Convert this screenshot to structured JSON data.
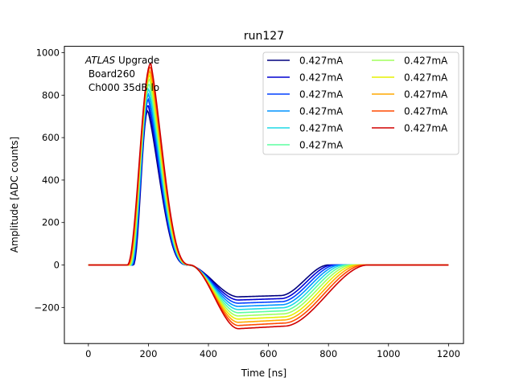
{
  "chart_data": {
    "type": "line",
    "title": "run127",
    "xlabel": "Time [ns]",
    "ylabel": "Amplitude [ADC counts]",
    "xlim": [
      -80,
      1250
    ],
    "ylim": [
      -370,
      1030
    ],
    "xticks": [
      0,
      200,
      400,
      600,
      800,
      1000,
      1200
    ],
    "yticks": [
      -200,
      0,
      200,
      400,
      600,
      800,
      1000
    ],
    "xtick_labels": [
      "0",
      "200",
      "400",
      "600",
      "800",
      "1000",
      "1200"
    ],
    "ytick_labels": [
      "−200",
      "0",
      "200",
      "400",
      "600",
      "800",
      "1000"
    ],
    "grid": false,
    "legend_placement": "top-right",
    "legend_columns": 2,
    "annotation": {
      "italic": "ATLAS",
      "line1_rest": " Upgrade",
      "line2": " Board260",
      "line3": " Ch000 35dB lo"
    },
    "series": [
      {
        "name": "0.427mA",
        "color": "#00007f",
        "peak": 730,
        "peak_x": 198,
        "undershoot": -150,
        "rise_start": 150,
        "end_lag": 0
      },
      {
        "name": "0.427mA",
        "color": "#0000d0",
        "peak": 755,
        "peak_x": 199,
        "undershoot": -165,
        "rise_start": 148,
        "end_lag": 6
      },
      {
        "name": "0.427mA",
        "color": "#0040ff",
        "peak": 780,
        "peak_x": 200,
        "undershoot": -180,
        "rise_start": 146,
        "end_lag": 12
      },
      {
        "name": "0.427mA",
        "color": "#0094ff",
        "peak": 805,
        "peak_x": 201,
        "undershoot": -195,
        "rise_start": 144,
        "end_lag": 18
      },
      {
        "name": "0.427mA",
        "color": "#1ed9e6",
        "peak": 830,
        "peak_x": 202,
        "undershoot": -210,
        "rise_start": 142,
        "end_lag": 24
      },
      {
        "name": "0.427mA",
        "color": "#5cffa0",
        "peak": 855,
        "peak_x": 203,
        "undershoot": -225,
        "rise_start": 140,
        "end_lag": 30
      },
      {
        "name": "0.427mA",
        "color": "#a0ff5c",
        "peak": 875,
        "peak_x": 204,
        "undershoot": -240,
        "rise_start": 138,
        "end_lag": 36
      },
      {
        "name": "0.427mA",
        "color": "#e6f000",
        "peak": 895,
        "peak_x": 205,
        "undershoot": -255,
        "rise_start": 136,
        "end_lag": 42
      },
      {
        "name": "0.427mA",
        "color": "#ffa800",
        "peak": 915,
        "peak_x": 206,
        "undershoot": -270,
        "rise_start": 134,
        "end_lag": 48
      },
      {
        "name": "0.427mA",
        "color": "#ff4a00",
        "peak": 935,
        "peak_x": 207,
        "undershoot": -285,
        "rise_start": 132,
        "end_lag": 54
      },
      {
        "name": "0.427mA",
        "color": "#d00000",
        "peak": 950,
        "peak_x": 208,
        "undershoot": -300,
        "rise_start": 130,
        "end_lag": 60
      }
    ]
  }
}
